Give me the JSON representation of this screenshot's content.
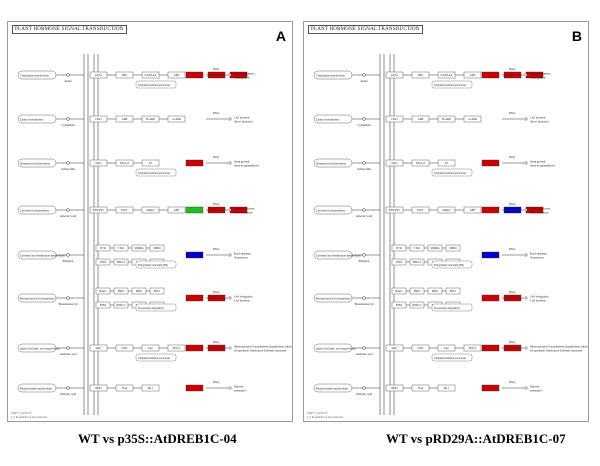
{
  "colors": {
    "up": "#cc0000",
    "down": "#0000cc",
    "mixed": "#22bb22",
    "line": "#333333",
    "box": "#666666"
  },
  "panels": [
    {
      "id": "a",
      "letter": "A",
      "title": "PLANT HORMONE SIGNAL TRANSDUCTION",
      "footer": [
        "04075 12/8/13",
        "(c) Kanehisa Laboratories"
      ],
      "caption": "WT vs p35S::AtDREB1C-04",
      "rows": [
        {
          "pathway": "Tryptophan metabolism",
          "compound": "Auxin",
          "genes": [
            "AUX1",
            "TIR1",
            "AUX/IAA",
            "ARF"
          ],
          "target_colors": [
            "up",
            "up",
            "up"
          ],
          "label_small": "Ubiquitin mediated proteolysis",
          "response": "Cell enlargement Plant growth"
        },
        {
          "pathway": "Zeatin biosynthesis",
          "compound": "Cytokinine",
          "genes": [
            "CRE1",
            "AHP",
            "B-ARR",
            "A-ARR"
          ],
          "target_colors": [],
          "label_small": "",
          "response": "Cell division Shoot initiation"
        },
        {
          "pathway": "Diterpenoid biosynthesis",
          "compound": "Gibberellin",
          "genes": [
            "GID1",
            "DELLA",
            "TF"
          ],
          "target_colors": [
            "up"
          ],
          "label_small": "Ubiquitin mediated proteolysis",
          "response": "Stem growth Induced germination"
        },
        {
          "pathway": "Carotenoid biosynthesis",
          "compound": "Abscisic acid",
          "genes": [
            "PYR/PYL",
            "PP2C",
            "SnRK2",
            "ABF"
          ],
          "target_colors": [
            "mixed",
            "up",
            "up"
          ],
          "label_small": "",
          "response": "Stomatal closure Seed dormancy"
        },
        {
          "pathway": "Cysteine and methionine metabolism",
          "compound": "Ethylene",
          "genes": [
            "ETR",
            "CTR1",
            "SIMKK",
            "MPK6",
            "EIN2",
            "EBF1/2",
            "EIN3",
            "ERF1/2"
          ],
          "target_colors": [
            "down"
          ],
          "label_small": "Endoplasmic reticulum (ER)",
          "response": "Fruit ripening Senescence"
        },
        {
          "pathway": "Brassinosteroid biosynthesis",
          "compound": "Brassinosteroid",
          "genes": [
            "BAK1",
            "BRI1",
            "BKI1",
            "BSU1",
            "BIN2",
            "BZR1/2",
            "TCH4",
            "CYCD3"
          ],
          "target_colors": [
            "up",
            "up"
          ],
          "label_small": "Proteasomal degradation",
          "response": "Cell elongation Cell division"
        },
        {
          "pathway": "alpha-Linolenic acid metabolism",
          "compound": "Jasmonic acid",
          "genes": [
            "JAR1",
            "COI1",
            "JAZ",
            "MYC2"
          ],
          "target_colors": [
            "up",
            "up"
          ],
          "label_small": "Ubiquitin mediated proteolysis",
          "response": "Monoterpenoid biosynthesis Isoquinoline alkaloid biosynthesis Senescence Defense responses"
        },
        {
          "pathway": "Phenylalanine metabolism",
          "compound": "Salicylic acid",
          "genes": [
            "NPR1",
            "TGA",
            "PR-1"
          ],
          "target_colors": [
            "up"
          ],
          "label_small": "",
          "response": "Disease resistance"
        }
      ]
    },
    {
      "id": "b",
      "letter": "B",
      "title": "PLANT HORMONE SIGNAL TRANSDUCTION",
      "footer": [
        "04075 12/8/13",
        "(c) Kanehisa Laboratories"
      ],
      "caption": "WT vs pRD29A::AtDREB1C-07",
      "rows": [
        {
          "pathway": "Tryptophan metabolism",
          "compound": "Auxin",
          "genes": [
            "AUX1",
            "TIR1",
            "AUX/IAA",
            "ARF"
          ],
          "target_colors": [
            "up",
            "up",
            "up"
          ],
          "label_small": "Ubiquitin mediated proteolysis",
          "response": "Cell enlargement Plant growth"
        },
        {
          "pathway": "Zeatin biosynthesis",
          "compound": "Cytokinine",
          "genes": [
            "CRE1",
            "AHP",
            "B-ARR",
            "A-ARR"
          ],
          "target_colors": [],
          "label_small": "",
          "response": "Cell division Shoot initiation"
        },
        {
          "pathway": "Diterpenoid biosynthesis",
          "compound": "Gibberellin",
          "genes": [
            "GID1",
            "DELLA",
            "TF"
          ],
          "target_colors": [
            "up"
          ],
          "label_small": "Ubiquitin mediated proteolysis",
          "response": "Stem growth Induced germination"
        },
        {
          "pathway": "Carotenoid biosynthesis",
          "compound": "Abscisic acid",
          "genes": [
            "PYR/PYL",
            "PP2C",
            "SnRK2",
            "ABF"
          ],
          "target_colors": [
            "up",
            "down",
            "up"
          ],
          "label_small": "",
          "response": "Stomatal closure Seed dormancy"
        },
        {
          "pathway": "Cysteine and methionine metabolism",
          "compound": "Ethylene",
          "genes": [
            "ETR",
            "CTR1",
            "SIMKK",
            "MPK6",
            "EIN2",
            "EBF1/2",
            "EIN3",
            "ERF1/2"
          ],
          "target_colors": [
            "down"
          ],
          "label_small": "Endoplasmic reticulum (ER)",
          "response": "Fruit ripening Senescence"
        },
        {
          "pathway": "Brassinosteroid biosynthesis",
          "compound": "Brassinosteroid",
          "genes": [
            "BAK1",
            "BRI1",
            "BKI1",
            "BSU1",
            "BIN2",
            "BZR1/2",
            "TCH4",
            "CYCD3"
          ],
          "target_colors": [
            "up",
            "up"
          ],
          "label_small": "Proteasomal degradation",
          "response": "Cell elongation Cell division"
        },
        {
          "pathway": "alpha-Linolenic acid metabolism",
          "compound": "Jasmonic acid",
          "genes": [
            "JAR1",
            "COI1",
            "JAZ",
            "MYC2"
          ],
          "target_colors": [
            "up",
            "up"
          ],
          "label_small": "Ubiquitin mediated proteolysis",
          "response": "Monoterpenoid biosynthesis Isoquinoline alkaloid biosynthesis Senescence Defense responses"
        },
        {
          "pathway": "Phenylalanine metabolism",
          "compound": "Salicylic acid",
          "genes": [
            "NPR1",
            "TGA",
            "PR-1"
          ],
          "target_colors": [
            "up"
          ],
          "label_small": "",
          "response": "Disease resistance"
        }
      ]
    }
  ]
}
